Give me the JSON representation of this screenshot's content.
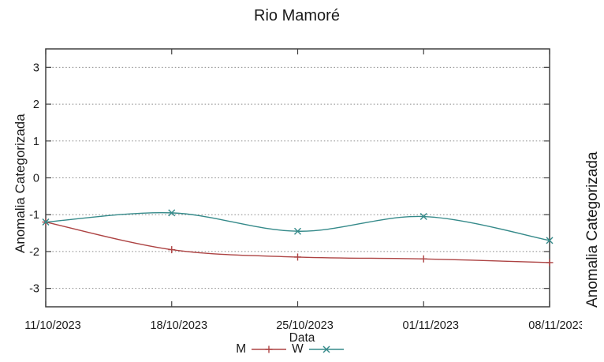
{
  "chart_data": {
    "type": "line",
    "title": "Rio Mamoré",
    "xlabel": "Data",
    "ylabel": "Anomalia Categorizada",
    "x_tick_labels": [
      "11/10/2023",
      "18/10/2023",
      "25/10/2023",
      "01/11/2023",
      "08/11/2023"
    ],
    "y_ticks": [
      -3,
      -2,
      -1,
      0,
      1,
      2,
      3
    ],
    "ylim": [
      -3.5,
      3.5
    ],
    "grid": "horizontal-dotted",
    "legend_position": "bottom-center",
    "series": [
      {
        "name": "M",
        "color": "#ad4343",
        "marker": "plus",
        "values": [
          -1.2,
          -1.95,
          -2.15,
          -2.2,
          -2.3
        ]
      },
      {
        "name": "W",
        "color": "#358a8a",
        "marker": "cross",
        "values": [
          -1.2,
          -0.95,
          -1.45,
          -1.05,
          -1.7
        ]
      }
    ]
  },
  "adjacent_chart": {
    "ylabel": "Anomalia Categorizada"
  }
}
